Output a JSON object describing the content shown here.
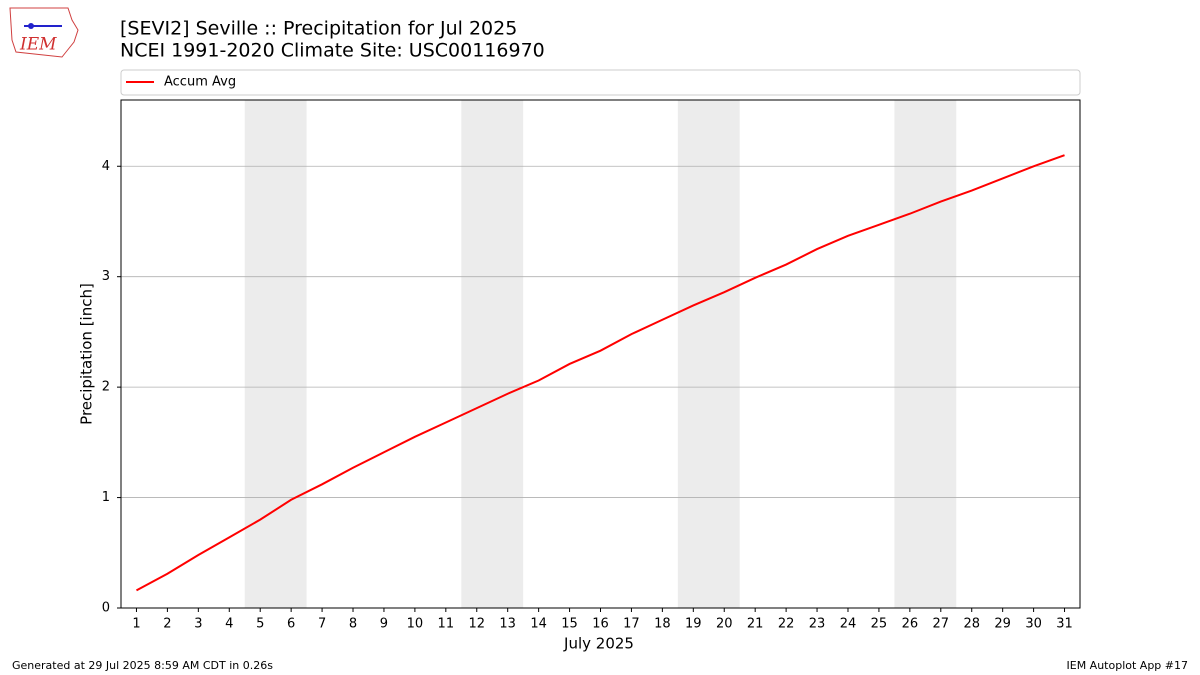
{
  "chart_data": {
    "type": "line",
    "title": "[SEVI2] Seville :: Precipitation for Jul 2025",
    "subtitle": "NCEI 1991-2020 Climate Site: USC00116970",
    "xlabel": "July 2025",
    "ylabel": "Precipitation [inch]",
    "x": [
      1,
      2,
      3,
      4,
      5,
      6,
      7,
      8,
      9,
      10,
      11,
      12,
      13,
      14,
      15,
      16,
      17,
      18,
      19,
      20,
      21,
      22,
      23,
      24,
      25,
      26,
      27,
      28,
      29,
      30,
      31
    ],
    "series": [
      {
        "name": "Accum Avg",
        "color": "#ff0000",
        "values": [
          0.16,
          0.31,
          0.48,
          0.64,
          0.8,
          0.98,
          1.12,
          1.27,
          1.41,
          1.55,
          1.68,
          1.81,
          1.94,
          2.06,
          2.21,
          2.33,
          2.48,
          2.61,
          2.74,
          2.86,
          2.99,
          3.11,
          3.25,
          3.37,
          3.47,
          3.57,
          3.68,
          3.78,
          3.89,
          4.0,
          4.1
        ]
      }
    ],
    "xlim": [
      0.5,
      31.5
    ],
    "xticks": [
      1,
      2,
      3,
      4,
      5,
      6,
      7,
      8,
      9,
      10,
      11,
      12,
      13,
      14,
      15,
      16,
      17,
      18,
      19,
      20,
      21,
      22,
      23,
      24,
      25,
      26,
      27,
      28,
      29,
      30,
      31
    ],
    "ylim": [
      0,
      4.6
    ],
    "yticks": [
      0,
      1,
      2,
      3,
      4
    ],
    "grid": true,
    "shaded_ranges": [
      [
        4.5,
        6.5
      ],
      [
        11.5,
        13.5
      ],
      [
        18.5,
        20.5
      ],
      [
        25.5,
        27.5
      ]
    ],
    "shade_color": "#ececec",
    "legend": "top"
  },
  "logo_text": "IEM",
  "footer_left": "Generated at 29 Jul 2025 8:59 AM CDT in 0.26s",
  "footer_right": "IEM Autoplot App #17"
}
